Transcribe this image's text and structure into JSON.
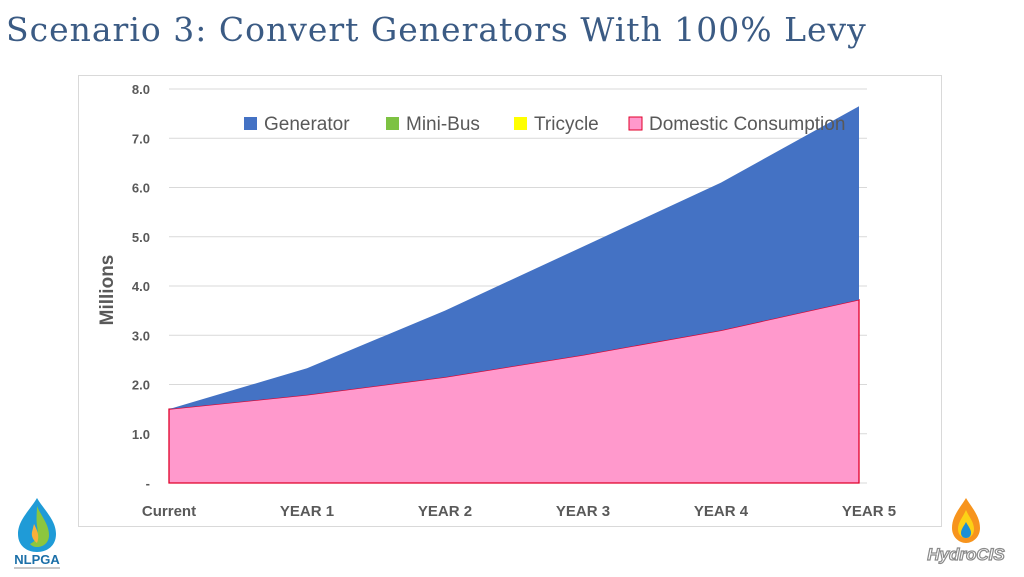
{
  "slide": {
    "title": "Scenario 3: Convert Generators With 100% Levy"
  },
  "logos": {
    "left_text": "NLPGA",
    "left_icon": "flame-drop-icon",
    "right_text": "HydroCIS",
    "right_icon": "fire-drop-icon"
  },
  "chart_data": {
    "type": "area",
    "stacked": true,
    "categories": [
      "Current",
      "YEAR 1",
      "YEAR 2",
      "YEAR 3",
      "YEAR 4",
      "YEAR 5"
    ],
    "series": [
      {
        "name": "Domestic Consumption",
        "values": [
          1.5,
          1.79,
          2.15,
          2.6,
          3.1,
          3.72
        ],
        "color": "#ff99cc",
        "stroke": "#e0002a"
      },
      {
        "name": "Tricycle",
        "values": [
          0,
          0,
          0,
          0,
          0,
          0
        ],
        "color": "#ffff00"
      },
      {
        "name": "Mini-Bus",
        "values": [
          0,
          0,
          0,
          0,
          0,
          0
        ],
        "color": "#7dc242"
      },
      {
        "name": "Generator",
        "values": [
          0,
          0.54,
          1.35,
          2.2,
          3.0,
          3.93
        ],
        "color": "#4472c4"
      }
    ],
    "legend_order": [
      "Generator",
      "Mini-Bus",
      "Tricycle",
      "Domestic Consumption"
    ],
    "ylabel": "Millions",
    "ylim": [
      0,
      8
    ],
    "yticks": [
      0,
      1,
      2,
      3,
      4,
      5,
      6,
      7,
      8
    ],
    "ytick_labels": [
      "-",
      "1.0",
      "2.0",
      "3.0",
      "4.0",
      "5.0",
      "6.0",
      "7.0",
      "8.0"
    ],
    "grid": true,
    "legend_position": "top-right"
  }
}
